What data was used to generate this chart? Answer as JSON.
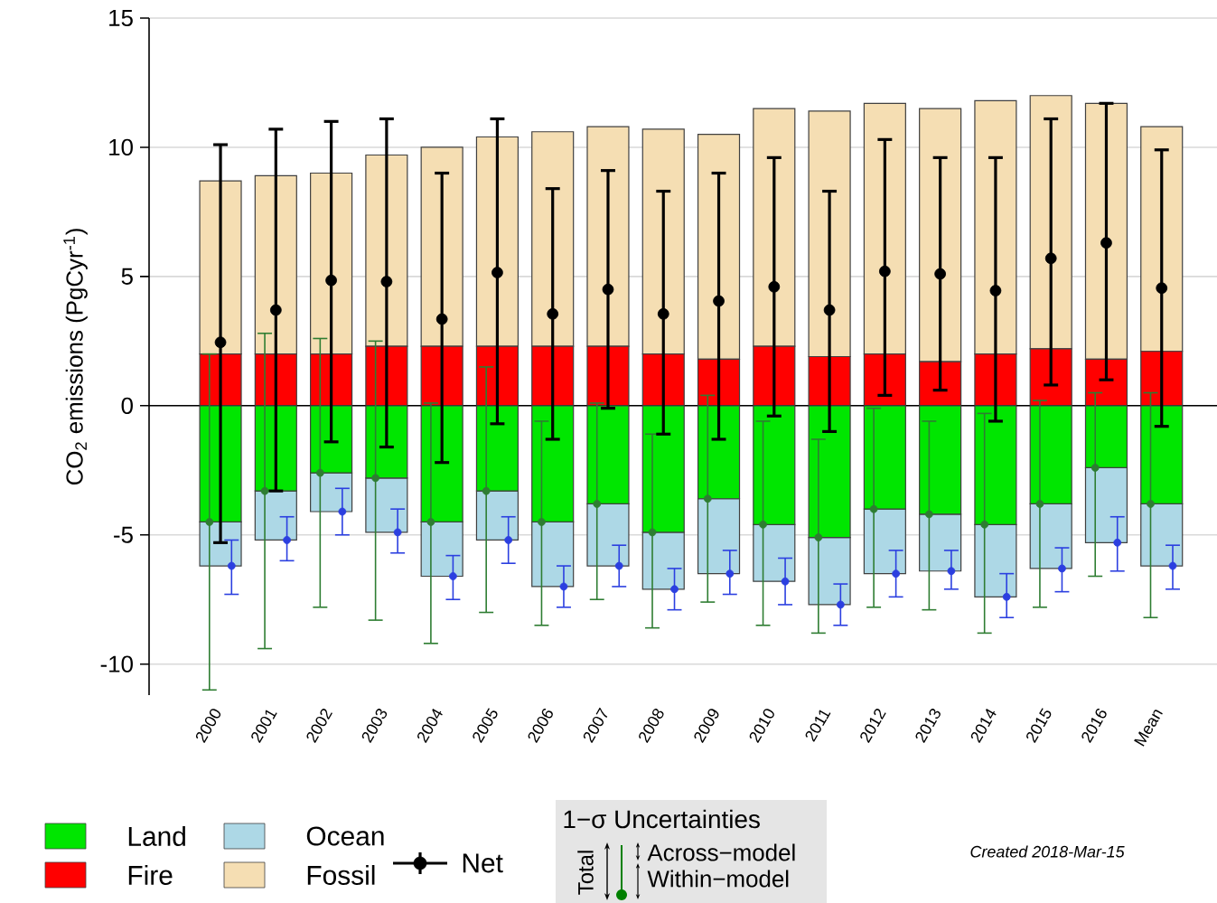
{
  "chart_data": {
    "type": "bar",
    "ylabel": "CO$_{2}$ emissions (PgCyr$^{-1}$)",
    "categories": [
      "2000",
      "2001",
      "2002",
      "2003",
      "2004",
      "2005",
      "2006",
      "2007",
      "2008",
      "2009",
      "2010",
      "2011",
      "2012",
      "2013",
      "2014",
      "2015",
      "2016",
      "Mean"
    ],
    "stacked": true,
    "marker": "circle",
    "grid": "y",
    "legend": "bottom",
    "ylim": [
      -11.2,
      15
    ],
    "yticks": [
      15,
      10,
      5,
      0,
      -5,
      -10
    ],
    "ref_lines": [
      {
        "axis": "y",
        "value": 0,
        "color": "#000000"
      }
    ],
    "series": [
      {
        "name": "Land",
        "color": "#00e600",
        "values": [
          -4.5,
          -3.3,
          -2.6,
          -2.8,
          -4.5,
          -3.3,
          -4.5,
          -3.8,
          -4.9,
          -3.6,
          -4.6,
          -5.1,
          -4.0,
          -4.2,
          -4.6,
          -3.8,
          -2.4,
          -3.8
        ]
      },
      {
        "name": "Fire",
        "color": "#ff0000",
        "values": [
          2.0,
          2.0,
          2.0,
          2.3,
          2.3,
          2.3,
          2.3,
          2.3,
          2.0,
          1.8,
          2.3,
          1.9,
          2.0,
          1.7,
          2.0,
          2.2,
          1.8,
          2.1
        ]
      },
      {
        "name": "Ocean",
        "color": "#add8e6",
        "values": [
          -1.7,
          -1.9,
          -1.5,
          -2.1,
          -2.1,
          -1.9,
          -2.5,
          -2.4,
          -2.2,
          -2.9,
          -2.2,
          -2.6,
          -2.5,
          -2.2,
          -2.8,
          -2.5,
          -2.9,
          -2.4
        ]
      },
      {
        "name": "Fossil",
        "color": "#f5deb3",
        "values": [
          6.7,
          6.9,
          7.0,
          7.4,
          7.7,
          8.1,
          8.3,
          8.5,
          8.7,
          8.7,
          9.2,
          9.5,
          9.7,
          9.8,
          9.8,
          9.8,
          9.9,
          8.7
        ]
      },
      {
        "type": "scatter",
        "color": "#2e7d32",
        "values": [
          -4.5,
          -3.3,
          -2.6,
          -2.8,
          -4.5,
          -3.3,
          -4.5,
          -3.8,
          -4.9,
          -3.6,
          -4.6,
          -5.1,
          -4.0,
          -4.2,
          -4.6,
          -3.8,
          -2.4,
          -3.8
        ],
        "errors": [
          [
            -11.0,
            2.0
          ],
          [
            -9.4,
            2.8
          ],
          [
            -7.8,
            2.6
          ],
          [
            -8.3,
            2.5
          ],
          [
            -9.2,
            0.1
          ],
          [
            -8.0,
            1.5
          ],
          [
            -8.5,
            -0.6
          ],
          [
            -7.5,
            0.1
          ],
          [
            -8.6,
            -1.1
          ],
          [
            -7.6,
            0.4
          ],
          [
            -8.5,
            -0.6
          ],
          [
            -8.8,
            -1.3
          ],
          [
            -7.8,
            -0.1
          ],
          [
            -7.9,
            -0.6
          ],
          [
            -8.8,
            -0.3
          ],
          [
            -7.8,
            0.2
          ],
          [
            -6.6,
            0.5
          ],
          [
            -8.2,
            0.5
          ]
        ]
      },
      {
        "type": "scatter",
        "color": "#2b3fe0",
        "values": [
          -6.2,
          -5.2,
          -4.1,
          -4.9,
          -6.6,
          -5.2,
          -7.0,
          -6.2,
          -7.1,
          -6.5,
          -6.8,
          -7.7,
          -6.5,
          -6.4,
          -7.4,
          -6.3,
          -5.3,
          -6.2
        ],
        "errors": [
          [
            -7.3,
            -5.2
          ],
          [
            -6.0,
            -4.3
          ],
          [
            -5.0,
            -3.2
          ],
          [
            -5.7,
            -4.0
          ],
          [
            -7.5,
            -5.8
          ],
          [
            -6.1,
            -4.3
          ],
          [
            -7.8,
            -6.2
          ],
          [
            -7.0,
            -5.4
          ],
          [
            -7.9,
            -6.3
          ],
          [
            -7.3,
            -5.6
          ],
          [
            -7.7,
            -5.9
          ],
          [
            -8.5,
            -6.9
          ],
          [
            -7.4,
            -5.6
          ],
          [
            -7.1,
            -5.6
          ],
          [
            -8.2,
            -6.5
          ],
          [
            -7.2,
            -5.5
          ],
          [
            -6.4,
            -4.3
          ],
          [
            -7.1,
            -5.4
          ]
        ]
      },
      {
        "type": "scatter",
        "name": "Net",
        "color": "#000000",
        "values": [
          2.45,
          3.7,
          4.85,
          4.8,
          3.35,
          5.15,
          3.55,
          4.5,
          3.55,
          4.05,
          4.6,
          3.7,
          5.2,
          5.1,
          4.45,
          5.7,
          6.3,
          4.55
        ],
        "errors": [
          [
            -5.3,
            10.1
          ],
          [
            -3.3,
            10.7
          ],
          [
            -1.4,
            11.0
          ],
          [
            -1.6,
            11.1
          ],
          [
            -2.2,
            9.0
          ],
          [
            -0.7,
            11.1
          ],
          [
            -1.3,
            8.4
          ],
          [
            -0.1,
            9.1
          ],
          [
            -1.1,
            8.3
          ],
          [
            -1.3,
            9.0
          ],
          [
            -0.4,
            9.6
          ],
          [
            -1.0,
            8.3
          ],
          [
            0.4,
            10.3
          ],
          [
            0.6,
            9.6
          ],
          [
            -0.6,
            9.6
          ],
          [
            0.8,
            11.1
          ],
          [
            1.0,
            11.7
          ],
          [
            -0.8,
            9.9
          ]
        ]
      }
    ],
    "annotations": [
      "1−σ Uncertainties",
      "Total",
      "Across−model",
      "Within−model",
      "Created 2018-Mar-15"
    ]
  }
}
